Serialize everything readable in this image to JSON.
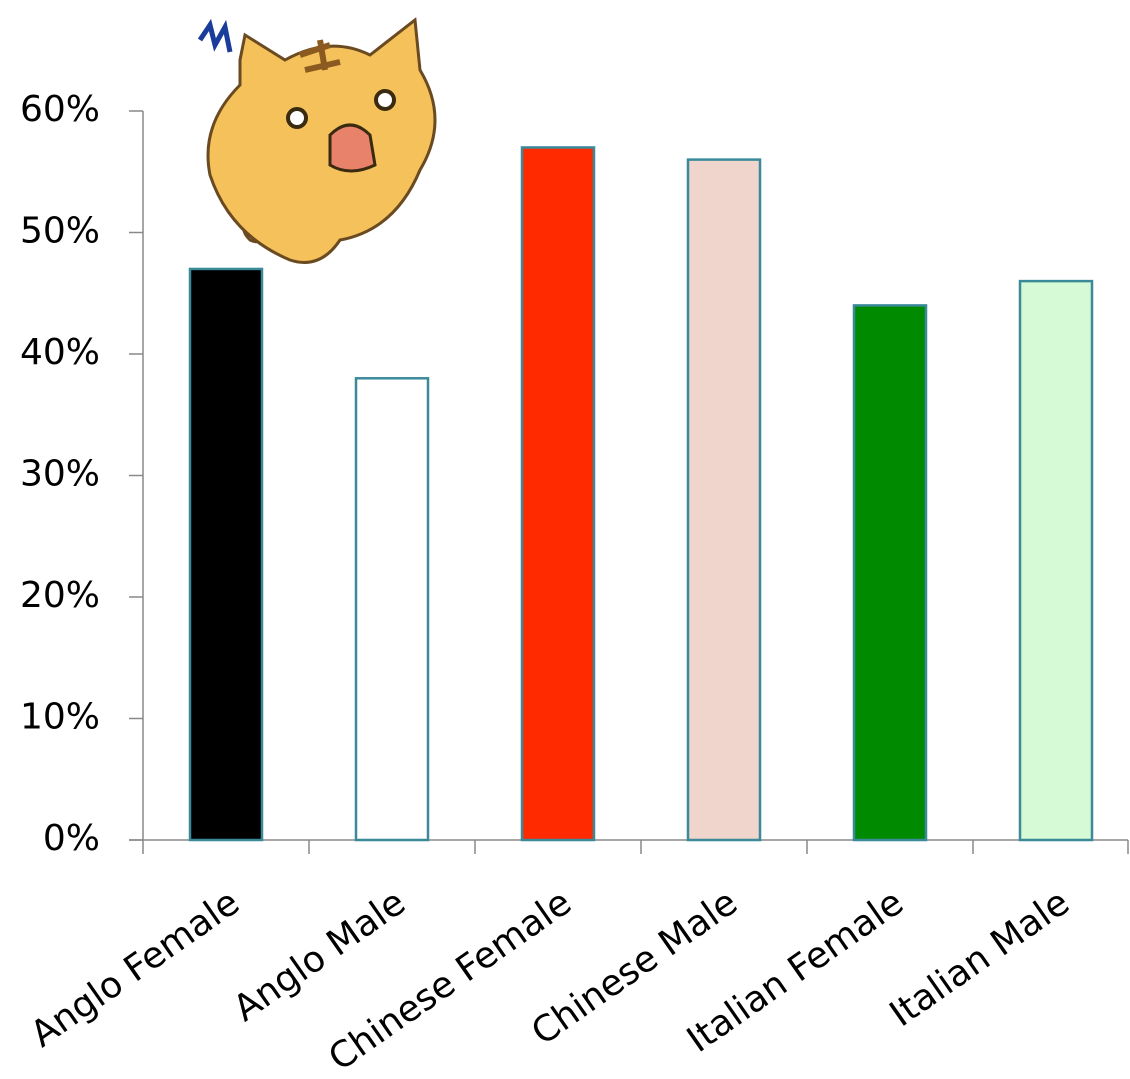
{
  "chart_data": {
    "type": "bar",
    "categories": [
      "Anglo Female",
      "Anglo Male",
      "Chinese Female",
      "Chinese Male",
      "Italian Female",
      "Italian Male"
    ],
    "values": [
      47,
      38,
      57,
      56,
      44,
      46
    ],
    "colors": [
      "#000000",
      "#ffffff",
      "#ff2a00",
      "#f0d5cc",
      "#008a00",
      "#d5fad5"
    ],
    "border_color": "#3a8a9a",
    "ylim": [
      0,
      60
    ],
    "yticks": [
      {
        "value": 0,
        "label": "0%"
      },
      {
        "value": 10,
        "label": "10%"
      },
      {
        "value": 20,
        "label": "20%"
      },
      {
        "value": 30,
        "label": "30%"
      },
      {
        "value": 40,
        "label": "40%"
      },
      {
        "value": 50,
        "label": "50%"
      },
      {
        "value": 60,
        "label": "60%"
      }
    ],
    "grid": false
  }
}
